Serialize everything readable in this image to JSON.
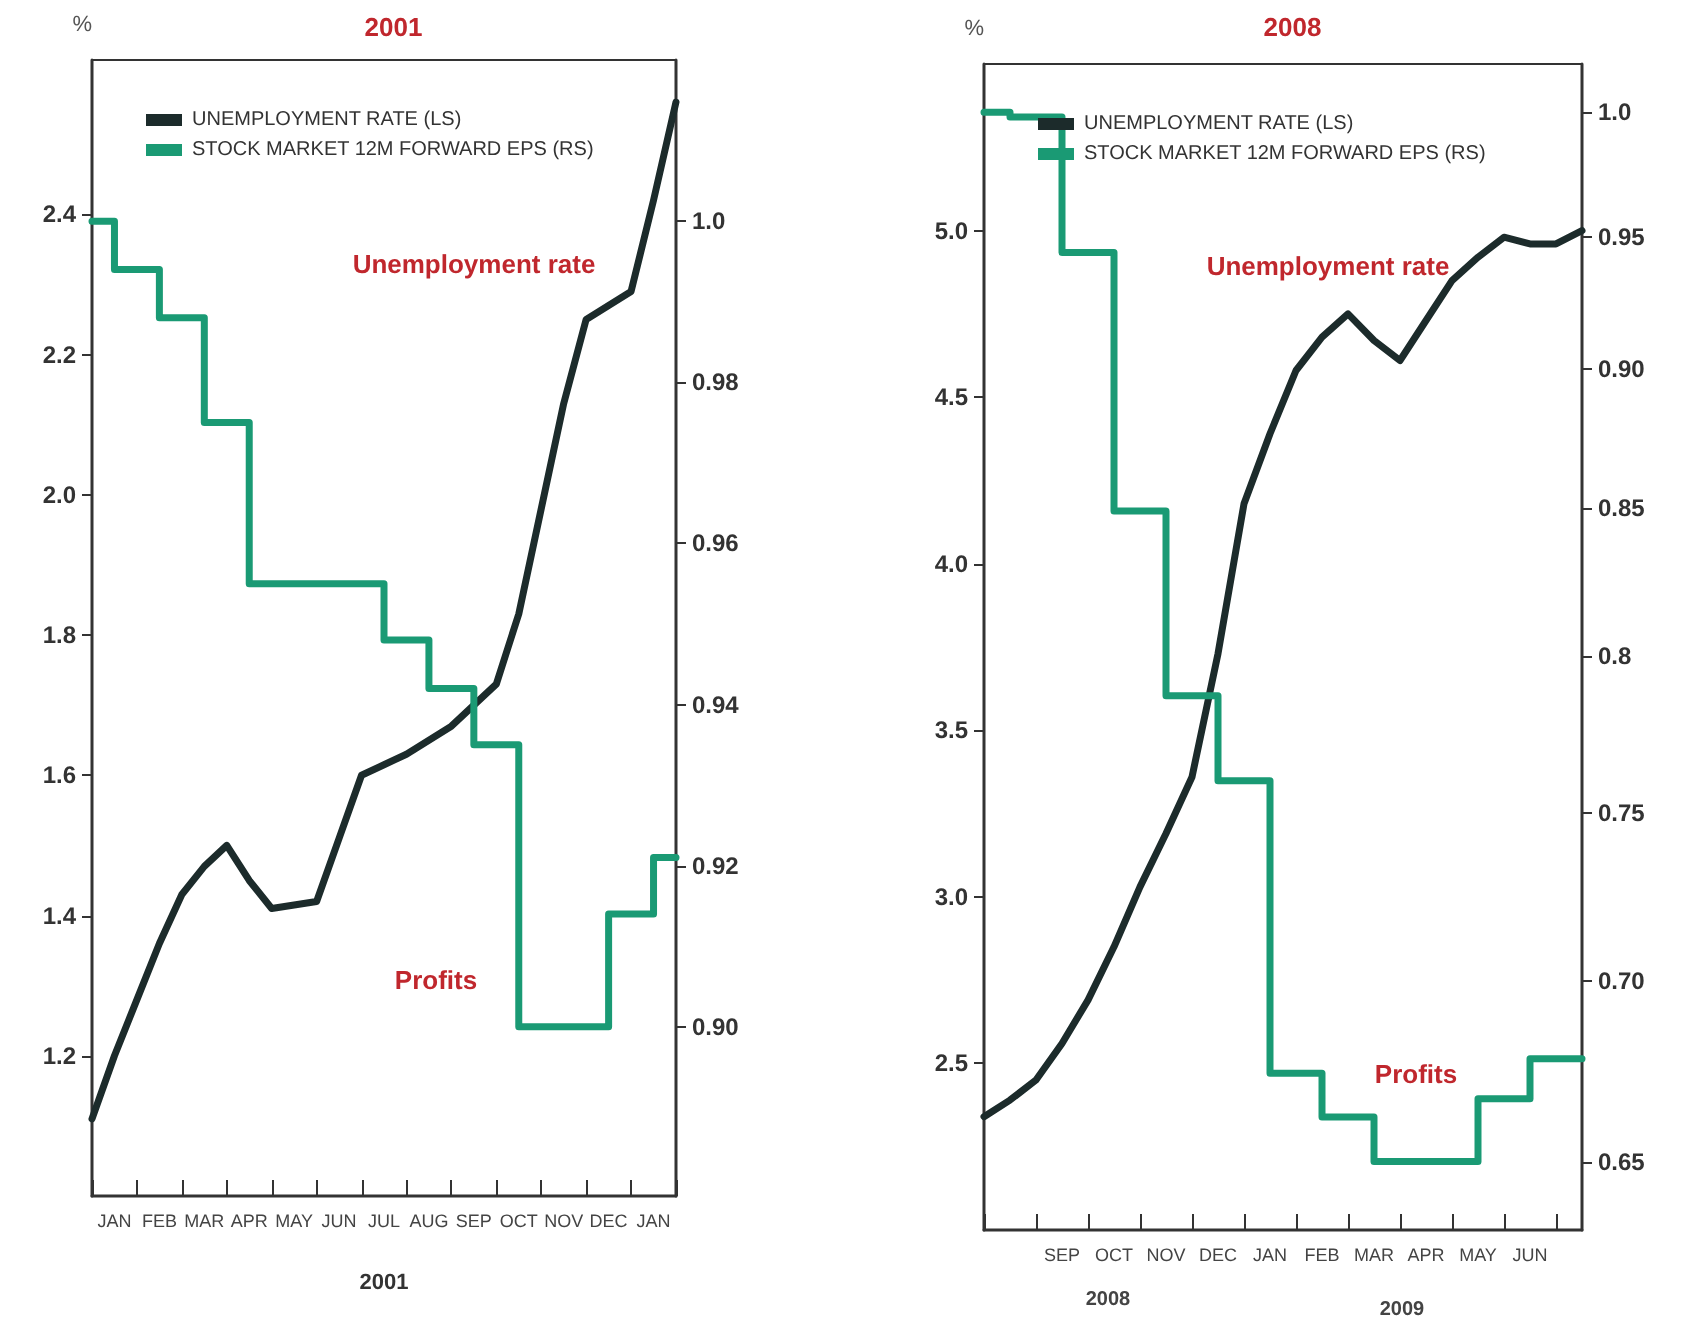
{
  "chart_data": [
    {
      "type": "line",
      "title": "2001",
      "xlabel": "2001",
      "ylabel": "%",
      "legend": "top left",
      "marker": "none",
      "line_style": "solid",
      "grid": false,
      "categories": [
        null,
        "JAN",
        null,
        "FEB",
        null,
        "MAR",
        null,
        "APR",
        null,
        "MAY",
        null,
        "JUN",
        null,
        "JUL",
        null,
        "AUG",
        null,
        "SEP",
        null,
        "OCT",
        null,
        "NOV",
        null,
        "DEC",
        null,
        "JAN",
        null
      ],
      "ylim": [
        1.0,
        2.62
      ],
      "yticks": [
        {
          "value": 1.2,
          "label": "1.2"
        },
        {
          "value": 1.4,
          "label": "1.4"
        },
        {
          "value": 1.6,
          "label": "1.6"
        },
        {
          "value": 1.8,
          "label": "1.8"
        },
        {
          "value": 2.0,
          "label": "2.0"
        },
        {
          "value": 2.2,
          "label": "2.2"
        },
        {
          "value": 2.4,
          "label": "2.4"
        }
      ],
      "y2lim": [
        0.879,
        1.02
      ],
      "y2ticks": [
        {
          "value": 0.9,
          "label": "0.90"
        },
        {
          "value": 0.92,
          "label": "0.92"
        },
        {
          "value": 0.94,
          "label": "0.94"
        },
        {
          "value": 0.96,
          "label": "0.96"
        },
        {
          "value": 0.98,
          "label": "0.98"
        },
        {
          "value": 1.0,
          "label": "1.0"
        }
      ],
      "series": [
        {
          "name": "UNEMPLOYMENT RATE (LS)",
          "color": "#1c2b2b",
          "values": [
            1.11,
            1.2,
            1.28,
            1.36,
            1.43,
            1.47,
            1.5,
            1.45,
            1.41,
            1.415,
            1.42,
            1.51,
            1.6,
            1.615,
            1.63,
            1.65,
            1.67,
            1.7,
            1.73,
            1.83,
            1.98,
            2.13,
            2.25,
            2.27,
            2.29,
            2.42,
            2.56
          ]
        },
        {
          "name": "STOCK MARKET 12M FORWARD EPS (RS)",
          "type": "step",
          "axis": "y2",
          "color": "#1a9a74",
          "values": [
            1.0,
            0.994,
            0.994,
            0.988,
            0.988,
            0.975,
            0.975,
            0.955,
            0.955,
            0.955,
            0.955,
            0.955,
            0.955,
            0.948,
            0.948,
            0.942,
            0.942,
            0.935,
            0.935,
            0.9,
            0.9,
            0.9,
            0.9,
            0.914,
            0.914,
            0.921,
            0.921
          ]
        }
      ],
      "annotations": [
        "Unemployment rate",
        "Profits"
      ]
    },
    {
      "type": "line",
      "title": "2008",
      "ylabel": "%",
      "legend": "top left",
      "marker": "none",
      "line_style": "solid",
      "grid": false,
      "log": "y2",
      "categories": [
        null,
        null,
        null,
        "SEP",
        null,
        "OCT",
        null,
        "NOV",
        null,
        "DEC",
        null,
        "JAN",
        null,
        "FEB",
        null,
        "MAR",
        null,
        "APR",
        null,
        "MAY",
        null,
        "JUN",
        null,
        null
      ],
      "ylim": [
        2.0,
        5.5
      ],
      "yticks": [
        {
          "value": 2.5,
          "label": "2.5"
        },
        {
          "value": 3.0,
          "label": "3.0"
        },
        {
          "value": 3.5,
          "label": "3.5"
        },
        {
          "value": 4.0,
          "label": "4.0"
        },
        {
          "value": 4.5,
          "label": "4.5"
        },
        {
          "value": 5.0,
          "label": "5.0"
        }
      ],
      "y2lim": [
        0.632,
        1.02
      ],
      "y2ticks": [
        {
          "value": 0.65,
          "label": "0.65"
        },
        {
          "value": 0.7,
          "label": "0.70"
        },
        {
          "value": 0.75,
          "label": "0.75"
        },
        {
          "value": 0.8,
          "label": "0.8"
        },
        {
          "value": 0.85,
          "label": "0.85"
        },
        {
          "value": 0.9,
          "label": "0.90"
        },
        {
          "value": 0.95,
          "label": "0.95"
        },
        {
          "value": 1.0,
          "label": "1.0"
        }
      ],
      "series": [
        {
          "name": "UNEMPLOYMENT RATE (LS)",
          "color": "#1c2b2b",
          "values": [
            2.34,
            2.39,
            2.45,
            2.56,
            2.69,
            2.85,
            3.03,
            3.19,
            3.36,
            3.73,
            4.18,
            4.39,
            4.58,
            4.68,
            4.75,
            4.67,
            4.61,
            4.73,
            4.85,
            4.92,
            4.98,
            4.96,
            4.96,
            5.0
          ]
        },
        {
          "name": "STOCK MARKET 12M FORWARD EPS (RS)",
          "type": "step",
          "axis": "y2",
          "color": "#1a9a74",
          "values": [
            1.0,
            0.998,
            0.998,
            0.944,
            0.944,
            0.849,
            0.849,
            0.787,
            0.787,
            0.76,
            0.76,
            0.674,
            0.674,
            0.662,
            0.662,
            0.65,
            0.65,
            0.65,
            0.65,
            0.667,
            0.667,
            0.678,
            0.678,
            0.678
          ]
        }
      ],
      "annotations": [
        "Unemployment rate",
        "Profits",
        "2008",
        "2009"
      ]
    }
  ]
}
